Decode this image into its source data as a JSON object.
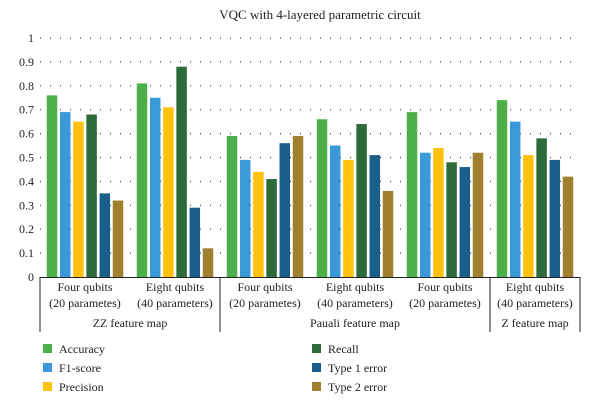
{
  "chart_data": {
    "type": "bar",
    "title": "VQC with 4-layered parametric circuit",
    "ylim": [
      0,
      1
    ],
    "yticks": [
      "0",
      "0.1",
      "0.2",
      "0.3",
      "0.4",
      "0.5",
      "0.6",
      "0.7",
      "0.8",
      "0.9",
      "1"
    ],
    "grid": "dotted-horizontal",
    "legend_position": "bottom",
    "categories": [
      [
        "Four qubits",
        "(20 parametes)"
      ],
      [
        "Eight qubits",
        "(40 parameters)"
      ],
      [
        "Four qubits",
        "(20 parametes)"
      ],
      [
        "Eight qubits",
        "(40 parameters)"
      ],
      [
        "Four qubits",
        "(20 parametes)"
      ],
      [
        "Eight qubits",
        "(40 parameters)"
      ]
    ],
    "groups": [
      {
        "label": "ZZ feature map",
        "span": [
          0,
          1
        ]
      },
      {
        "label": "Pauali feature map",
        "span": [
          2,
          4
        ]
      },
      {
        "label": "Z feature map",
        "span": [
          5,
          5
        ]
      }
    ],
    "series": [
      {
        "name": "Accuracy",
        "color": "#4daf4a",
        "values": [
          0.76,
          0.81,
          0.59,
          0.66,
          0.69,
          0.74
        ]
      },
      {
        "name": "F1-score",
        "color": "#3a9ad9",
        "values": [
          0.69,
          0.75,
          0.49,
          0.55,
          0.52,
          0.65
        ]
      },
      {
        "name": "Precision",
        "color": "#fec10e",
        "values": [
          0.65,
          0.71,
          0.44,
          0.49,
          0.54,
          0.51
        ]
      },
      {
        "name": "Recall",
        "color": "#2e6b3a",
        "values": [
          0.68,
          0.88,
          0.41,
          0.64,
          0.48,
          0.58
        ]
      },
      {
        "name": "Type 1 error",
        "color": "#1a5e8c",
        "values": [
          0.35,
          0.29,
          0.56,
          0.51,
          0.46,
          0.49
        ]
      },
      {
        "name": "Type 2 error",
        "color": "#a0802e",
        "values": [
          0.32,
          0.12,
          0.59,
          0.36,
          0.52,
          0.42
        ]
      }
    ]
  }
}
